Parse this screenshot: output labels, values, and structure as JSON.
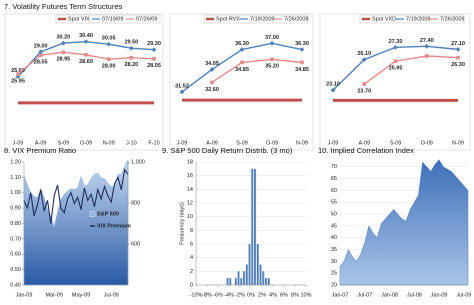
{
  "section_title": "7. Volatility Futures Term Structures",
  "chart_data": [
    {
      "type": "line",
      "categories": [
        "J-09",
        "A-09",
        "S-09",
        "O-09",
        "N-09",
        "J-10",
        "F-10"
      ],
      "ylim": [
        18,
        32
      ],
      "series": [
        {
          "name": "Spot VIX",
          "color": "#c0504d",
          "style": "band",
          "values": [
            22,
            22,
            22,
            22,
            22,
            22,
            22
          ]
        },
        {
          "name": "07/19/09",
          "color": "#4f81bd",
          "marker": "diamond",
          "values": [
            25.6,
            29.0,
            30.2,
            30.4,
            30.05,
            29.5,
            29.3
          ],
          "value_labels": [
            "25.60",
            "29.00",
            "30.20",
            "30.40",
            "30.05",
            "29.50",
            "29.30"
          ]
        },
        {
          "name": "07/26/09",
          "color": "#e8898a",
          "marker": "square",
          "values": [
            25.95,
            28.55,
            28.95,
            28.6,
            28.0,
            28.2,
            28.05
          ],
          "value_labels": [
            "25.95",
            "28.55",
            "28.95",
            "28.60",
            "28.00",
            "28.20",
            "28.05"
          ]
        }
      ]
    },
    {
      "type": "line",
      "categories": [
        "J-09",
        "A-09",
        "S-09",
        "O-09",
        "N-09"
      ],
      "ylim": [
        27,
        38.5
      ],
      "series": [
        {
          "name": "Spot RVX",
          "color": "#c0504d",
          "style": "band",
          "values": [
            30.6,
            30.6,
            30.6,
            30.6,
            30.6
          ]
        },
        {
          "name": "7/19/2009",
          "color": "#4f81bd",
          "marker": "diamond",
          "values": [
            31.52,
            34.05,
            36.3,
            37.0,
            36.3
          ],
          "value_labels": [
            "31.52",
            "34.05",
            "36.30",
            "37.00",
            "36.30"
          ]
        },
        {
          "name": "7/26/2009",
          "color": "#e8898a",
          "marker": "square",
          "values": [
            null,
            32.6,
            34.85,
            35.2,
            34.85
          ],
          "value_labels": [
            null,
            "32.60",
            "34.85",
            "35.20",
            "34.85"
          ]
        }
      ]
    },
    {
      "type": "line",
      "categories": [
        "J-09",
        "A-09",
        "S-09",
        "O-09",
        "N-09"
      ],
      "ylim": [
        19,
        29
      ],
      "series": [
        {
          "name": "Spot VXD",
          "color": "#c0504d",
          "style": "band",
          "values": [
            22.1,
            22.1,
            22.1,
            22.1,
            22.1
          ]
        },
        {
          "name": "7/19/2009",
          "color": "#4f81bd",
          "marker": "diamond",
          "values": [
            23.1,
            26.1,
            27.3,
            27.4,
            27.1
          ],
          "value_labels": [
            "23.10",
            "26.10",
            "27.30",
            "27.40",
            "27.10"
          ]
        },
        {
          "name": "7/26/2009",
          "color": "#e8898a",
          "marker": "square",
          "values": [
            null,
            23.7,
            25.95,
            26.45,
            26.3
          ],
          "value_labels": [
            null,
            "23.70",
            "25.95",
            null,
            "26.30"
          ]
        }
      ]
    },
    {
      "type": "combo",
      "title": "8. VIX Premium Ratio",
      "categories": [
        "Jan-09",
        null,
        null,
        null,
        null,
        null,
        null,
        null,
        null,
        "Mar-09",
        null,
        null,
        null,
        null,
        null,
        null,
        null,
        "May-09",
        null,
        null,
        null,
        null,
        null,
        null,
        null,
        null,
        "Jul-09",
        null,
        null,
        null,
        null,
        null
      ],
      "ylim": [
        0.4,
        1.2
      ],
      "yticks": [
        {
          "value": 0.4,
          "label": "0.40"
        },
        {
          "value": 0.5,
          "label": "0.50"
        },
        {
          "value": 0.6,
          "label": "0.60"
        },
        {
          "value": 0.7,
          "label": "0.70"
        },
        {
          "value": 0.8,
          "label": "0.80"
        },
        {
          "value": 0.9,
          "label": "0.90"
        },
        {
          "value": 1.0,
          "label": "1.00"
        },
        {
          "value": 1.1,
          "label": "1.10"
        },
        {
          "value": 1.2,
          "label": "1.20"
        }
      ],
      "y2lim": [
        400,
        1000
      ],
      "y2ticks": [
        600,
        800,
        {
          "value": 1000,
          "label": "1,000"
        }
      ],
      "series": [
        {
          "name": "S&P 500",
          "color": "#8db3e2",
          "kind": "area",
          "axis": "y2",
          "values": [
            931,
            890,
            850,
            832,
            826,
            869,
            826,
            770,
            735,
            683,
            756,
            815,
            842,
            857,
            869,
            866,
            873,
            929,
            883,
            888,
            919,
            940,
            946,
            921,
            918,
            896,
            880,
            879,
            940,
            940,
            979,
            1010
          ]
        },
        {
          "name": "VIX Premium",
          "color": "#1f2d5c",
          "kind": "line",
          "values": [
            0.95,
            0.9,
            1.0,
            0.85,
            0.92,
            1.02,
            0.88,
            0.95,
            0.8,
            0.98,
            1.05,
            0.9,
            0.87,
            0.96,
            1.0,
            0.93,
            0.97,
            0.89,
            1.03,
            0.95,
            0.99,
            0.91,
            1.02,
            0.96,
            1.04,
            0.98,
            0.94,
            1.06,
            1.1,
            1.02,
            1.15,
            1.12
          ]
        }
      ]
    },
    {
      "type": "histogram",
      "title": "9. S&P 500 Daily Return Distrib. (3 mo)",
      "y_label": "Frequency (days)",
      "color": "#4f81bd",
      "bins": [
        -5,
        -4.5,
        -4,
        -3.5,
        -3,
        -2.5,
        -2,
        -1.5,
        -1,
        -0.5,
        0,
        0.5,
        1,
        1.5,
        2,
        2.5,
        3,
        3.5,
        4,
        4.5,
        5
      ],
      "values": [
        0,
        1,
        1,
        0,
        1,
        2,
        1,
        2,
        3,
        6,
        17,
        17,
        6,
        3,
        2,
        1,
        1,
        0,
        0,
        0
      ],
      "xlim": [
        -10,
        10
      ],
      "xticks": [
        {
          "value": -10,
          "label": "-10%"
        },
        {
          "value": -8,
          "label": "-8%"
        },
        {
          "value": -6,
          "label": "-6%"
        },
        {
          "value": -4,
          "label": "-4%"
        },
        {
          "value": -2,
          "label": "-2%"
        },
        {
          "value": 0,
          "label": "0%"
        },
        {
          "value": 2,
          "label": "2%"
        },
        {
          "value": 4,
          "label": "4%"
        },
        {
          "value": 6,
          "label": "6%"
        },
        {
          "value": 8,
          "label": "8%"
        },
        {
          "value": 10,
          "label": "10%"
        }
      ],
      "ylim": [
        0,
        18
      ],
      "yticks": [
        0,
        2,
        4,
        6,
        8,
        10,
        12,
        14,
        16,
        18
      ],
      "grid": true
    },
    {
      "type": "area",
      "title": "10. Implied Correlation Index",
      "color": "#4f81bd",
      "categories": [
        "Jan-07",
        null,
        null,
        null,
        null,
        null,
        "Jul-07",
        null,
        null,
        null,
        null,
        null,
        "Jan-08",
        null,
        null,
        null,
        null,
        null,
        "Jul-08",
        null,
        null,
        null,
        null,
        null,
        "Jan-09",
        null,
        null,
        null,
        null,
        null,
        "Jul-09",
        null
      ],
      "values": [
        28,
        30,
        35,
        32,
        30,
        33,
        38,
        45,
        42,
        40,
        46,
        48,
        50,
        52,
        50,
        48,
        47,
        52,
        55,
        58,
        72,
        70,
        68,
        71,
        73,
        70,
        69,
        68,
        66,
        64,
        62,
        60
      ],
      "ylim": [
        20,
        72
      ],
      "yticks": [
        20,
        25,
        30,
        35,
        40,
        45,
        50,
        55,
        60,
        65,
        70
      ],
      "grid": true
    }
  ]
}
